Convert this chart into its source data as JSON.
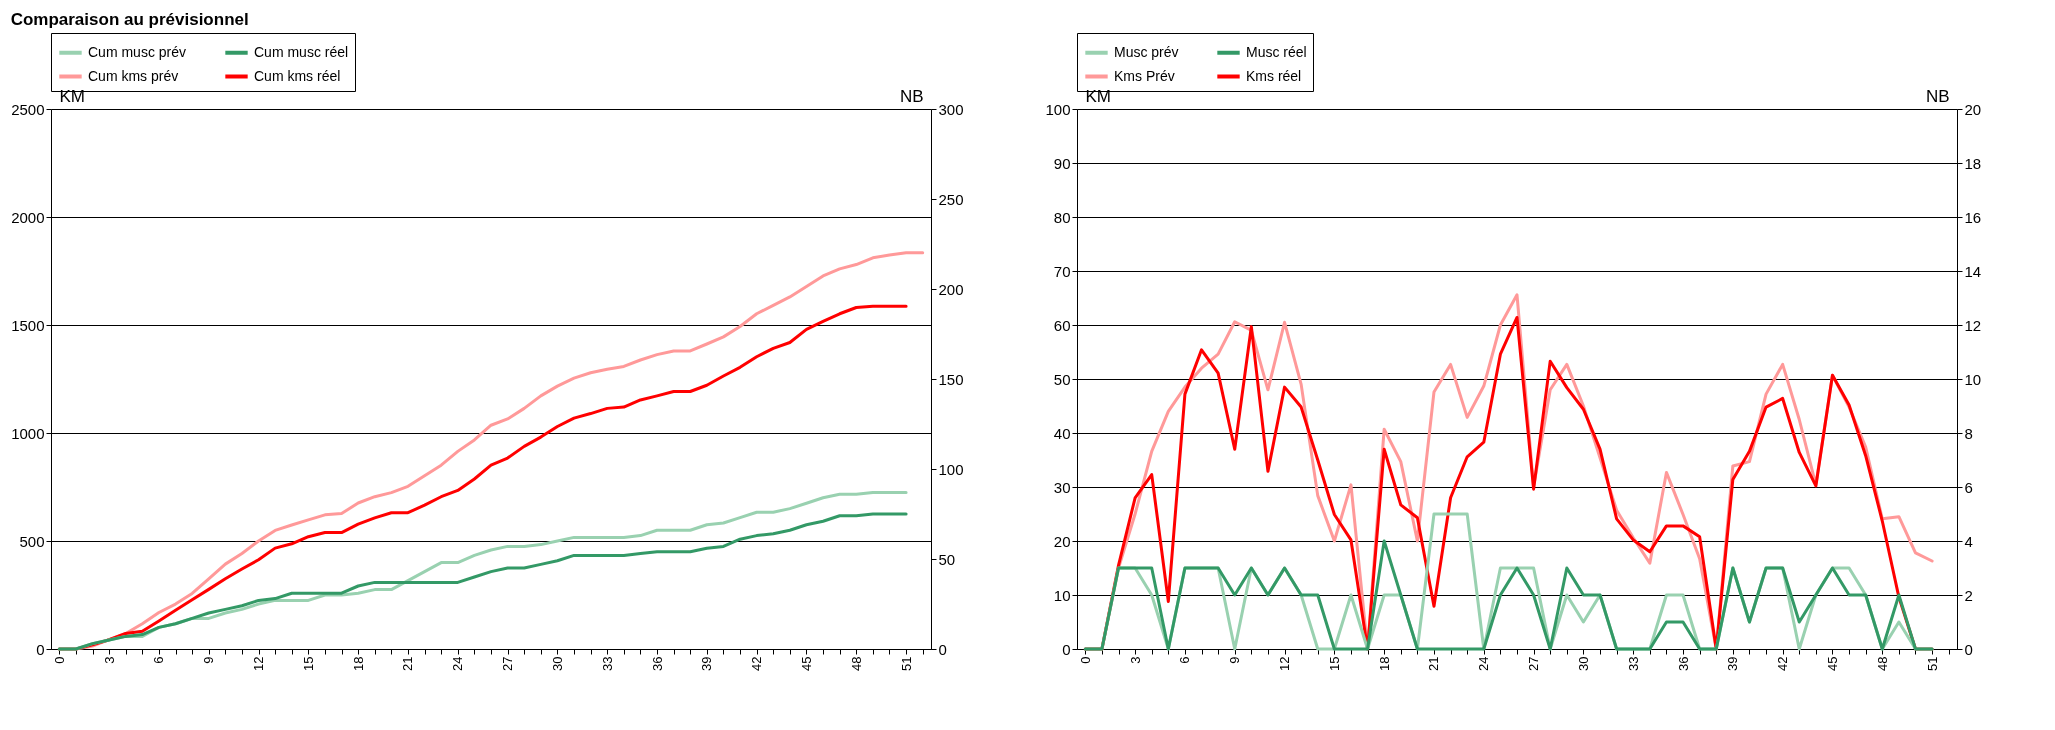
{
  "chart_data": [
    {
      "type": "line",
      "title": "Comparaison au prévisionnel",
      "ylabel": "KM",
      "y2label": "NB",
      "categories": [
        "0",
        null,
        null,
        "3",
        null,
        null,
        "6",
        null,
        null,
        "9",
        null,
        null,
        "12",
        null,
        null,
        "15",
        null,
        null,
        "18",
        null,
        null,
        "21",
        null,
        null,
        "24",
        null,
        null,
        "27",
        null,
        null,
        "30",
        null,
        null,
        "33",
        null,
        null,
        "36",
        null,
        null,
        "39",
        null,
        null,
        "42",
        null,
        null,
        "45",
        null,
        null,
        "48",
        null,
        null,
        "51",
        null
      ],
      "ylim": [
        0,
        2500
      ],
      "yticks": [
        0,
        500,
        1000,
        1500,
        2000,
        2500
      ],
      "y2lim": [
        0,
        300
      ],
      "y2ticks": [
        0,
        50,
        100,
        150,
        200,
        250,
        300
      ],
      "grid": "y",
      "legend": "top",
      "marker": "none",
      "line_style": "solid",
      "series": [
        {
          "name": "Cum musc prév",
          "color": "#99d1b0",
          "axis": "y2",
          "values": [
            0,
            0,
            3,
            5,
            7,
            7,
            12,
            14,
            17,
            17,
            20,
            22,
            25,
            27,
            27,
            27,
            30,
            30,
            31,
            33,
            33,
            38,
            43,
            48,
            48,
            52,
            55,
            57,
            57,
            58,
            60,
            62,
            62,
            62,
            62,
            63,
            66,
            66,
            66,
            69,
            70,
            73,
            76,
            76,
            78,
            81,
            84,
            86,
            86,
            87,
            87,
            87,
            null
          ]
        },
        {
          "name": "Cum musc réel",
          "color": "#339966",
          "axis": "y2",
          "values": [
            0,
            0,
            3,
            5,
            7,
            8,
            12,
            14,
            17,
            20,
            22,
            24,
            27,
            28,
            31,
            31,
            31,
            31,
            35,
            37,
            37,
            37,
            37,
            37,
            37,
            40,
            43,
            45,
            45,
            47,
            49,
            52,
            52,
            52,
            52,
            53,
            54,
            54,
            54,
            56,
            57,
            61,
            63,
            64,
            66,
            69,
            71,
            74,
            74,
            75,
            75,
            75,
            null
          ]
        },
        {
          "name": "Cum kms prév",
          "color": "#ff9999",
          "axis": "y",
          "values": [
            0,
            0,
            14,
            43,
            72,
            117,
            169,
            208,
            257,
            325,
            393,
            442,
            500,
            549,
            574,
            598,
            621,
            627,
            676,
            705,
            724,
            753,
            802,
            851,
            915,
            968,
            1036,
            1065,
            1114,
            1172,
            1217,
            1254,
            1279,
            1295,
            1308,
            1338,
            1363,
            1380,
            1380,
            1412,
            1445,
            1493,
            1552,
            1591,
            1630,
            1678,
            1727,
            1760,
            1780,
            1811,
            1824,
            1834,
            1834
          ]
        },
        {
          "name": "Cum kms réel",
          "color": "#ff0000",
          "axis": "y",
          "values": [
            0,
            0,
            19,
            43,
            72,
            82,
            130,
            179,
            228,
            276,
            325,
            370,
            413,
            467,
            487,
            520,
            539,
            539,
            578,
            607,
            631,
            631,
            666,
            705,
            734,
            787,
            851,
            884,
            938,
            981,
            1030,
            1069,
            1090,
            1114,
            1120,
            1153,
            1172,
            1192,
            1192,
            1221,
            1264,
            1304,
            1353,
            1392,
            1419,
            1480,
            1517,
            1552,
            1581,
            1587,
            1587,
            1587,
            null
          ]
        }
      ]
    },
    {
      "type": "line",
      "ylabel": "KM",
      "y2label": "NB",
      "categories": [
        "0",
        null,
        null,
        "3",
        null,
        null,
        "6",
        null,
        null,
        "9",
        null,
        null,
        "12",
        null,
        null,
        "15",
        null,
        null,
        "18",
        null,
        null,
        "21",
        null,
        null,
        "24",
        null,
        null,
        "27",
        null,
        null,
        "30",
        null,
        null,
        "33",
        null,
        null,
        "36",
        null,
        null,
        "39",
        null,
        null,
        "42",
        null,
        null,
        "45",
        null,
        null,
        "48",
        null,
        null,
        "51",
        null
      ],
      "ylim": [
        0,
        100
      ],
      "yticks": [
        0,
        10,
        20,
        30,
        40,
        50,
        60,
        70,
        80,
        90,
        100
      ],
      "y2lim": [
        0,
        20
      ],
      "y2ticks": [
        0,
        2,
        4,
        6,
        8,
        10,
        12,
        14,
        16,
        18,
        20
      ],
      "grid": "y",
      "legend": "top",
      "marker": "none",
      "line_style": "solid",
      "series": [
        {
          "name": "Musc prév",
          "color": "#99d1b0",
          "axis": "y2",
          "values": [
            0,
            0,
            3,
            3,
            2,
            0,
            3,
            3,
            3,
            0,
            3,
            2,
            3,
            2,
            0,
            0,
            2,
            0,
            2,
            2,
            0,
            5,
            5,
            5,
            0,
            3,
            3,
            3,
            0,
            2,
            1,
            2,
            0,
            0,
            0,
            2,
            2,
            0,
            0,
            3,
            1,
            3,
            3,
            0,
            2,
            3,
            3,
            2,
            0,
            1,
            0,
            0,
            null
          ]
        },
        {
          "name": "Musc réel",
          "color": "#339966",
          "axis": "y2",
          "values": [
            0,
            0,
            3,
            3,
            3,
            0,
            3,
            3,
            3,
            2,
            3,
            2,
            3,
            2,
            2,
            0,
            0,
            0,
            4,
            2,
            0,
            0,
            0,
            0,
            0,
            2,
            3,
            2,
            0,
            3,
            2,
            2,
            0,
            0,
            0,
            1,
            1,
            0,
            0,
            3,
            1,
            3,
            3,
            1,
            2,
            3,
            2,
            2,
            0,
            2,
            0,
            0,
            null
          ]
        },
        {
          "name": "Kms Prév",
          "color": "#ff9999",
          "axis": "y",
          "values": [
            0,
            0,
            15,
            25,
            36.6,
            44,
            48.5,
            52,
            54.6,
            60.6,
            59,
            48,
            60.5,
            49,
            28.4,
            20,
            30.4,
            0,
            40.7,
            34.7,
            20,
            47.6,
            52.7,
            42.9,
            48.7,
            60,
            65.6,
            30,
            48,
            52.7,
            45,
            35.4,
            25.7,
            20.6,
            15.9,
            32.7,
            24.9,
            16.7,
            0,
            33.9,
            34.7,
            47.2,
            52.7,
            42.5,
            30.4,
            50.7,
            44.8,
            37.4,
            24.1,
            24.5,
            17.8,
            16.3,
            null
          ]
        },
        {
          "name": "Kms réel",
          "color": "#ff0000",
          "axis": "y",
          "values": [
            0,
            0,
            15.5,
            28,
            32.3,
            8.8,
            47.2,
            55.4,
            51.1,
            37,
            59.7,
            32.9,
            48.5,
            44.8,
            35,
            24.9,
            20.2,
            0,
            37,
            26.7,
            24.3,
            7.9,
            28,
            35.6,
            38.3,
            54.6,
            61.4,
            29.6,
            53.3,
            48.4,
            44.4,
            37,
            24.1,
            20.2,
            18,
            22.8,
            22.8,
            20.8,
            0,
            31.4,
            36.6,
            44.8,
            46.4,
            36.4,
            30.2,
            50.7,
            45.2,
            35.8,
            23.7,
            9.6,
            0,
            0,
            null
          ]
        }
      ]
    }
  ]
}
